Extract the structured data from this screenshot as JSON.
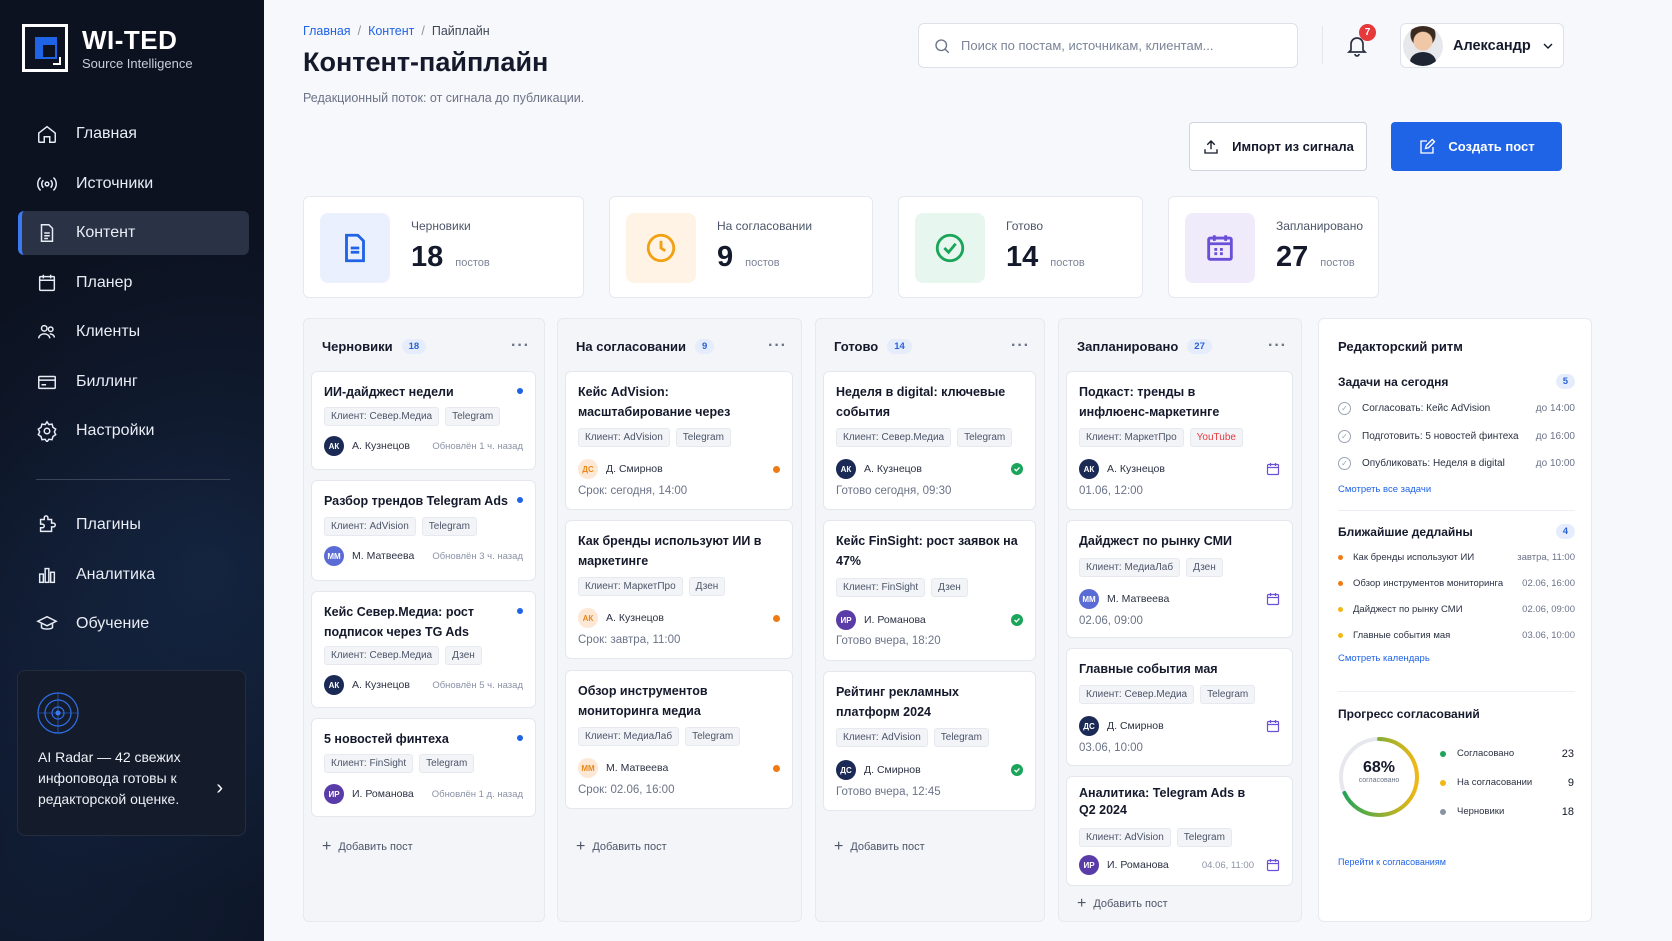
{
  "brand": {
    "title": "WI-TED",
    "subtitle": "Source Intelligence"
  },
  "nav": [
    {
      "label": "Главная",
      "icon": "home-icon"
    },
    {
      "label": "Источники",
      "icon": "broadcast-icon"
    },
    {
      "label": "Контент",
      "icon": "document-icon",
      "active": true
    },
    {
      "label": "Планер",
      "icon": "calendar-icon"
    },
    {
      "label": "Клиенты",
      "icon": "users-icon"
    },
    {
      "label": "Биллинг",
      "icon": "card-icon"
    },
    {
      "label": "Настройки",
      "icon": "gear-icon"
    }
  ],
  "nav2": [
    {
      "label": "Плагины",
      "icon": "puzzle-icon"
    },
    {
      "label": "Аналитика",
      "icon": "bar-chart-icon"
    },
    {
      "label": "Обучение",
      "icon": "graduation-cap-icon"
    }
  ],
  "radar": {
    "text": "AI Radar — 42 свежих инфоповода готовы к редакторской оценке."
  },
  "breadcrumb": {
    "home": "Главная",
    "content": "Контент",
    "current": "Пайплайн"
  },
  "page": {
    "title": "Контент-пайплайн",
    "subtitle": "Редакционный поток: от сигнала до публикации."
  },
  "search": {
    "placeholder": "Поиск по постам, источникам, клиентам..."
  },
  "notifications": {
    "count": "7"
  },
  "user": {
    "name": "Александр"
  },
  "actions": {
    "import": "Импорт из сигнала",
    "create": "Создать пост"
  },
  "stats": [
    {
      "label": "Черновики",
      "value": "18",
      "unit": "постов"
    },
    {
      "label": "На согласовании",
      "value": "9",
      "unit": "постов"
    },
    {
      "label": "Готово",
      "value": "14",
      "unit": "постов"
    },
    {
      "label": "Запланировано",
      "value": "27",
      "unit": "постов"
    }
  ],
  "columns": {
    "drafts": {
      "title": "Черновики",
      "count": "18",
      "add": "Добавить пост",
      "cards": [
        {
          "title": "ИИ-дайджест недели",
          "client": "Клиент: Север.Медиа",
          "channel": "Telegram",
          "initials": "АК",
          "author": "А. Кузнецов",
          "updated": "Обновлён 1 ч. назад"
        },
        {
          "title": "Разбор трендов Telegram Ads",
          "client": "Клиент: AdVision",
          "channel": "Telegram",
          "initials": "ММ",
          "author": "М. Матвеева",
          "updated": "Обновлён 3 ч. назад"
        },
        {
          "title": "Кейс Север.Медиа: рост подписок через TG Ads",
          "client": "Клиент: Север.Медиа",
          "channel": "Дзен",
          "initials": "АК",
          "author": "А. Кузнецов",
          "updated": "Обновлён 5 ч. назад"
        },
        {
          "title": "5 новостей финтеха",
          "client": "Клиент: FinSight",
          "channel": "Telegram",
          "initials": "ИР",
          "author": "И. Романова",
          "updated": "Обновлён 1 д. назад"
        }
      ]
    },
    "review": {
      "title": "На согласовании",
      "count": "9",
      "add": "Добавить пост",
      "cards": [
        {
          "title": "Кейс AdVision: масштабирование через контент",
          "client": "Клиент: AdVision",
          "channel": "Telegram",
          "initials": "ДС",
          "author": "Д. Смирнов",
          "when": "Срок: сегодня, 14:00"
        },
        {
          "title": "Как бренды используют ИИ в маркетинге",
          "client": "Клиент: МаркетПро",
          "channel": "Дзен",
          "initials": "АК",
          "author": "А. Кузнецов",
          "when": "Срок: завтра, 11:00"
        },
        {
          "title": "Обзор инструментов мониторинга медиа",
          "client": "Клиент: МедиаЛаб",
          "channel": "Telegram",
          "initials": "ММ",
          "author": "М. Матвеева",
          "when": "Срок: 02.06, 16:00"
        }
      ]
    },
    "ready": {
      "title": "Готово",
      "count": "14",
      "add": "Добавить пост",
      "cards": [
        {
          "title": "Неделя в digital: ключевые события",
          "client": "Клиент: Север.Медиа",
          "channel": "Telegram",
          "initials": "АК",
          "author": "А. Кузнецов",
          "when": "Готово сегодня, 09:30"
        },
        {
          "title": "Кейс FinSight: рост заявок на 47%",
          "client": "Клиент: FinSight",
          "channel": "Дзен",
          "initials": "ИР",
          "author": "И. Романова",
          "when": "Готово вчера, 18:20"
        },
        {
          "title": "Рейтинг рекламных платформ 2024",
          "client": "Клиент: AdVision",
          "channel": "Telegram",
          "initials": "ДС",
          "author": "Д. Смирнов",
          "when": "Готово вчера, 12:45"
        }
      ]
    },
    "scheduled": {
      "title": "Запланировано",
      "count": "27",
      "add": "Добавить пост",
      "cards": [
        {
          "title": "Подкаст: тренды в инфлюенс-маркетинге",
          "client": "Клиент: МаркетПро",
          "channel": "YouTube",
          "initials": "АК",
          "author": "А. Кузнецов",
          "when": "01.06, 12:00"
        },
        {
          "title": "Дайджест по рынку СМИ",
          "client": "Клиент: МедиаЛаб",
          "channel": "Дзен",
          "initials": "ММ",
          "author": "М. Матвеева",
          "when": "02.06, 09:00"
        },
        {
          "title": "Главные события мая",
          "client": "Клиент: Север.Медиа",
          "channel": "Telegram",
          "initials": "ДС",
          "author": "Д. Смирнов",
          "when": "03.06, 10:00"
        },
        {
          "title": "Аналитика: Telegram Ads в Q2 2024",
          "client": "Клиент: AdVision",
          "channel": "Telegram",
          "initials": "ИР",
          "author": "И. Романова",
          "when": "04.06, 11:00"
        }
      ]
    }
  },
  "rhythm": {
    "title": "Редакторский ритм",
    "tasks_title": "Задачи на сегодня",
    "tasks_count": "5",
    "tasks": [
      {
        "label": "Согласовать: Кейс AdVision",
        "due": "до 14:00"
      },
      {
        "label": "Подготовить: 5 новостей финтеха",
        "due": "до 16:00"
      },
      {
        "label": "Опубликовать: Неделя в digital",
        "due": "до 10:00"
      }
    ],
    "tasks_link": "Смотреть все задачи",
    "deadlines_title": "Ближайшие дедлайны",
    "deadlines_count": "4",
    "deadlines": [
      {
        "label": "Как бренды используют ИИ",
        "due": "завтра, 11:00",
        "color": "#f07a14"
      },
      {
        "label": "Обзор инструментов мониторинга",
        "due": "02.06, 16:00",
        "color": "#f07a14"
      },
      {
        "label": "Дайджест по рынку СМИ",
        "due": "02.06, 09:00",
        "color": "#f0b814"
      },
      {
        "label": "Главные события мая",
        "due": "03.06, 10:00",
        "color": "#f0b814"
      }
    ],
    "deadlines_link": "Смотреть календарь",
    "progress_title": "Прогресс согласований",
    "progress_percent": "68%",
    "progress_caption": "согласовано",
    "progress_fraction": 0.68,
    "legend": [
      {
        "label": "Согласовано",
        "value": "23",
        "color": "#1aa55a"
      },
      {
        "label": "На согласовании",
        "value": "9",
        "color": "#f0b814"
      },
      {
        "label": "Черновики",
        "value": "18",
        "color": "#8a92a5"
      }
    ],
    "progress_link": "Перейти к согласованиям"
  },
  "colors": {
    "accent": "#1f63e6",
    "success": "#1aa55a",
    "warning": "#f07a14",
    "sidebar": "#0c1220"
  }
}
